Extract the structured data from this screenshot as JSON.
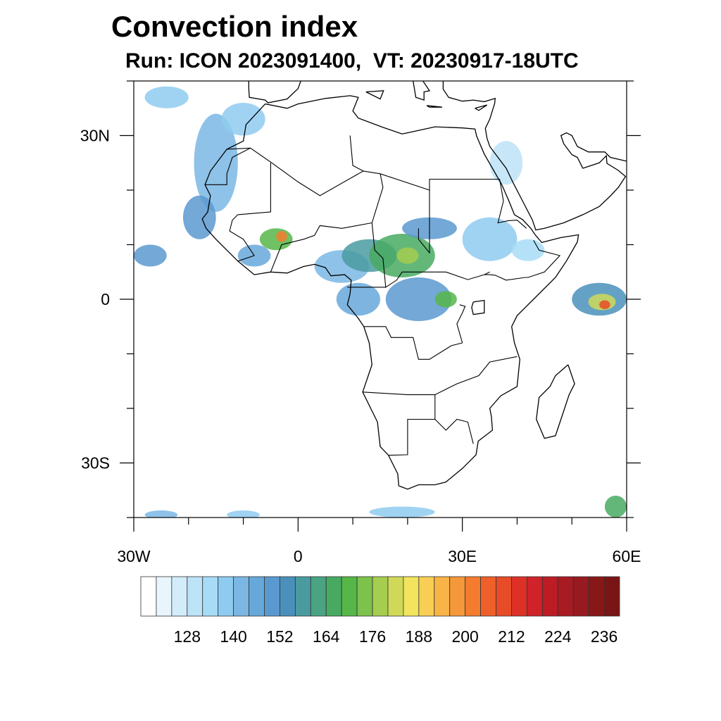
{
  "title": "Convection index",
  "subtitle": "Run: ICON 2023091400,  VT: 20230917-18UTC",
  "map": {
    "lon_range": [
      -30,
      60
    ],
    "lat_range": [
      -40,
      40
    ],
    "x_tick_labels": [
      {
        "lon": -30,
        "label": "30W"
      },
      {
        "lon": 0,
        "label": "0"
      },
      {
        "lon": 30,
        "label": "30E"
      },
      {
        "lon": 60,
        "label": "60E"
      }
    ],
    "y_tick_labels": [
      {
        "lat": 30,
        "label": "30N"
      },
      {
        "lat": 0,
        "label": "0"
      },
      {
        "lat": -30,
        "label": "30S"
      }
    ],
    "convection_cells": [
      {
        "lon": -15,
        "lat": 25,
        "rx": 4,
        "ry": 9,
        "value": 140
      },
      {
        "lon": -18,
        "lat": 15,
        "rx": 3,
        "ry": 4,
        "value": 150
      },
      {
        "lon": -10,
        "lat": 33,
        "rx": 4,
        "ry": 3,
        "value": 136
      },
      {
        "lon": -24,
        "lat": 37,
        "rx": 4,
        "ry": 2,
        "value": 136
      },
      {
        "lon": -27,
        "lat": 8,
        "rx": 3,
        "ry": 2,
        "value": 150
      },
      {
        "lon": -4,
        "lat": 11,
        "rx": 3,
        "ry": 2,
        "value": 168
      },
      {
        "lon": -3,
        "lat": 11.5,
        "rx": 1,
        "ry": 1,
        "value": 200
      },
      {
        "lon": -8,
        "lat": 8,
        "rx": 3,
        "ry": 2,
        "value": 144
      },
      {
        "lon": 8,
        "lat": 6,
        "rx": 5,
        "ry": 3,
        "value": 140
      },
      {
        "lon": 13,
        "lat": 8,
        "rx": 5,
        "ry": 3,
        "value": 156
      },
      {
        "lon": 19,
        "lat": 8,
        "rx": 6,
        "ry": 4,
        "value": 164
      },
      {
        "lon": 20,
        "lat": 8,
        "rx": 2,
        "ry": 1.5,
        "value": 176
      },
      {
        "lon": 24,
        "lat": 13,
        "rx": 5,
        "ry": 2,
        "value": 148
      },
      {
        "lon": 11,
        "lat": 0,
        "rx": 4,
        "ry": 3,
        "value": 144
      },
      {
        "lon": 22,
        "lat": 0,
        "rx": 6,
        "ry": 4,
        "value": 148
      },
      {
        "lon": 27,
        "lat": 0,
        "rx": 2,
        "ry": 1.5,
        "value": 168
      },
      {
        "lon": 35,
        "lat": 11,
        "rx": 5,
        "ry": 4,
        "value": 136
      },
      {
        "lon": 38,
        "lat": 25,
        "rx": 3,
        "ry": 4,
        "value": 128
      },
      {
        "lon": 42,
        "lat": 9,
        "rx": 3,
        "ry": 2,
        "value": 132
      },
      {
        "lon": 55,
        "lat": 0,
        "rx": 5,
        "ry": 3,
        "value": 152
      },
      {
        "lon": 55.5,
        "lat": -0.5,
        "rx": 2.5,
        "ry": 1.5,
        "value": 180
      },
      {
        "lon": 56,
        "lat": -1,
        "rx": 1,
        "ry": 0.8,
        "value": 210
      },
      {
        "lon": 58,
        "lat": -38,
        "rx": 2,
        "ry": 2,
        "value": 164
      },
      {
        "lon": 19,
        "lat": -39,
        "rx": 6,
        "ry": 1,
        "value": 136
      },
      {
        "lon": -25,
        "lat": -39.5,
        "rx": 3,
        "ry": 0.8,
        "value": 140
      },
      {
        "lon": -10,
        "lat": -39.5,
        "rx": 3,
        "ry": 0.8,
        "value": 136
      }
    ]
  },
  "colorbar": {
    "levels_start": 120,
    "levels_step": 4,
    "labels": [
      "128",
      "140",
      "152",
      "164",
      "176",
      "188",
      "200",
      "212",
      "224",
      "236"
    ],
    "colors": [
      "#ffffff",
      "#e8f5fc",
      "#d3ecf9",
      "#bde3f7",
      "#a7dcf7",
      "#8fcbf0",
      "#7ab7e4",
      "#67a8da",
      "#5a99d0",
      "#4a90bb",
      "#4a9ba0",
      "#4aa383",
      "#48aa61",
      "#56b648",
      "#7cc24c",
      "#a5cd50",
      "#cfd957",
      "#f2e45d",
      "#f9ce55",
      "#f8b447",
      "#f5973b",
      "#f47c2f",
      "#ef5f2a",
      "#e74b28",
      "#dd3127",
      "#d02229",
      "#bc1d25",
      "#a91b22",
      "#961a1f",
      "#881818",
      "#7a1515"
    ]
  }
}
